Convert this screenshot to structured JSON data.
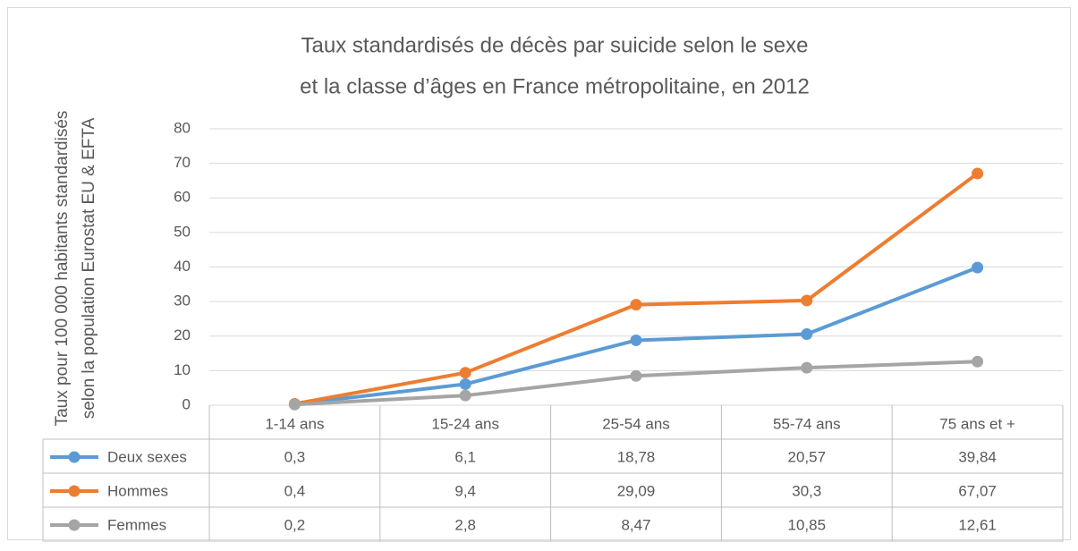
{
  "chart_data": {
    "type": "line",
    "title": [
      "Taux standardisés de décès par suicide selon le sexe",
      "et la classe d’âges en France métropolitaine, en 2012"
    ],
    "y_label": [
      "Taux pour 100 000 habitants standardisés",
      "selon la population Eurostat EU & EFTA"
    ],
    "categories": [
      "1-14 ans",
      "15-24 ans",
      "25-54 ans",
      "55-74 ans",
      "75 ans et +"
    ],
    "series": [
      {
        "name": "Deux sexes",
        "color": "#5b9bd5",
        "values": [
          0.3,
          6.1,
          18.78,
          20.57,
          39.84
        ],
        "value_labels": [
          "0,3",
          "6,1",
          "18,78",
          "20,57",
          "39,84"
        ]
      },
      {
        "name": "Hommes",
        "color": "#ed7d31",
        "values": [
          0.4,
          9.4,
          29.09,
          30.3,
          67.07
        ],
        "value_labels": [
          "0,4",
          "9,4",
          "29,09",
          "30,3",
          "67,07"
        ]
      },
      {
        "name": "Femmes",
        "color": "#a5a5a5",
        "values": [
          0.2,
          2.8,
          8.47,
          10.85,
          12.61
        ],
        "value_labels": [
          "0,2",
          "2,8",
          "8,47",
          "10,85",
          "12,61"
        ]
      }
    ],
    "ylim": [
      0,
      80
    ],
    "yticks": [
      0,
      10,
      20,
      30,
      40,
      50,
      60,
      70,
      80
    ],
    "grid": true
  }
}
